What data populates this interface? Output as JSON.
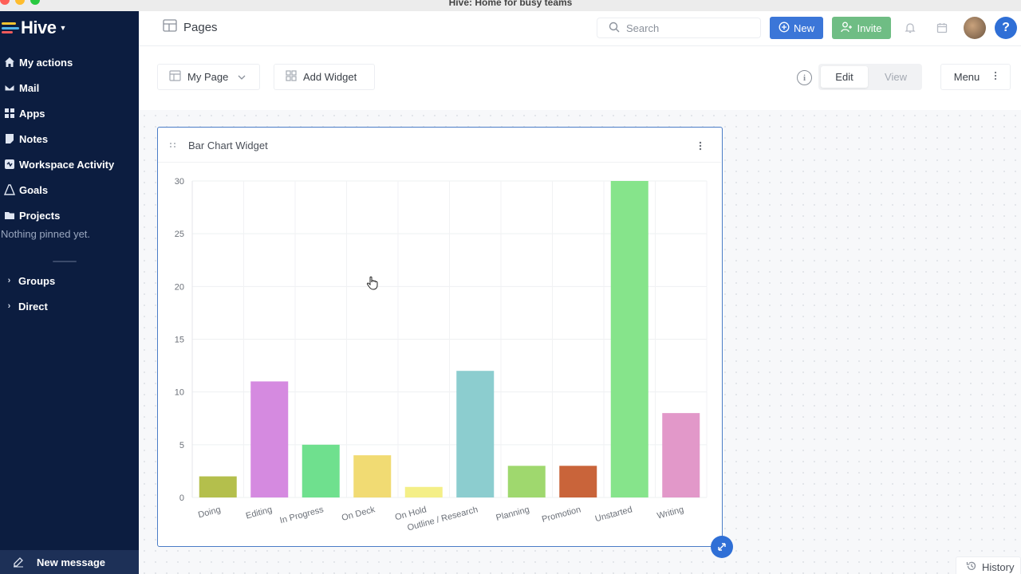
{
  "window": {
    "title": "Hive: Home for busy teams"
  },
  "sidebar": {
    "logo": "Hive",
    "items": [
      {
        "label": "My actions",
        "icon": "home-icon"
      },
      {
        "label": "Mail",
        "icon": "mail-icon"
      },
      {
        "label": "Apps",
        "icon": "apps-grid-icon"
      },
      {
        "label": "Notes",
        "icon": "notes-icon"
      },
      {
        "label": "Workspace Activity",
        "icon": "activity-icon"
      },
      {
        "label": "Goals",
        "icon": "goals-icon"
      },
      {
        "label": "Projects",
        "icon": "folder-icon"
      }
    ],
    "pinned_empty": "Nothing pinned yet.",
    "sections": [
      {
        "label": "Groups"
      },
      {
        "label": "Direct"
      }
    ],
    "new_message": "New message"
  },
  "header": {
    "title": "Pages",
    "search_placeholder": "Search",
    "new_label": "New",
    "invite_label": "Invite",
    "help_label": "?"
  },
  "toolbar": {
    "page_select": "My Page",
    "add_widget": "Add Widget",
    "info": "i",
    "edit": "Edit",
    "view": "View",
    "menu": "Menu"
  },
  "widget": {
    "title": "Bar Chart Widget"
  },
  "footer": {
    "history": "History"
  },
  "colors": {
    "sidebar": "#0c1d40",
    "accent": "#3b76d8",
    "invite": "#6fbd84",
    "widget_border": "#4a7cc6"
  },
  "chart_data": {
    "type": "bar",
    "categories": [
      "Doing",
      "Editing",
      "In Progress",
      "On Deck",
      "On Hold",
      "Outline / Research",
      "Planning",
      "Promotion",
      "Unstarted",
      "Writing"
    ],
    "values": [
      2,
      11,
      5,
      4,
      1,
      12,
      3,
      3,
      30,
      8
    ],
    "colors": [
      "#b4bf4c",
      "#d58ae0",
      "#6fe08e",
      "#f1db73",
      "#f4ef87",
      "#8ccdcf",
      "#9fd86e",
      "#c9643a",
      "#86e48b",
      "#e298c9"
    ],
    "ylim": [
      0,
      30
    ],
    "yticks": [
      0,
      5,
      10,
      15,
      20,
      25,
      30
    ],
    "grid": true,
    "title": "",
    "xlabel": "",
    "ylabel": ""
  }
}
